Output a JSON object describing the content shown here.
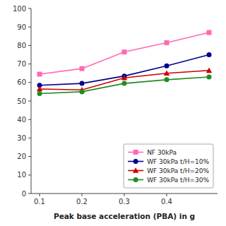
{
  "chart_data": {
    "type": "line",
    "x": [
      0.1,
      0.2,
      0.3,
      0.4,
      0.5
    ],
    "xlabel": "Peak base acceleration (PBA) in g",
    "series": [
      {
        "name": "NF 30kPa",
        "color": "#FF69B4",
        "marker": "square",
        "values": [
          64.5,
          67.5,
          76.5,
          81.5,
          87.0
        ]
      },
      {
        "name": "WF 30kPa t/H=10%",
        "color": "#00008B",
        "marker": "circle",
        "values": [
          58.5,
          59.5,
          63.5,
          69.0,
          75.0
        ]
      },
      {
        "name": "WF 30kPa t/H=20%",
        "color": "#CC0000",
        "marker": "triangle",
        "values": [
          56.5,
          56.0,
          62.5,
          65.0,
          66.5
        ]
      },
      {
        "name": "WF 30kPa t/H=30%",
        "color": "#228B22",
        "marker": "circle",
        "values": [
          54.0,
          55.0,
          59.5,
          61.5,
          63.0
        ]
      }
    ],
    "xlim": [
      0.08,
      0.52
    ],
    "ylim": [
      0,
      100
    ],
    "xticks": [
      0.1,
      0.2,
      0.3,
      0.4
    ],
    "yticks": [
      0,
      10,
      20,
      30,
      40,
      50,
      60,
      70,
      80,
      90,
      100
    ],
    "legend": "lower right",
    "grid": false
  }
}
